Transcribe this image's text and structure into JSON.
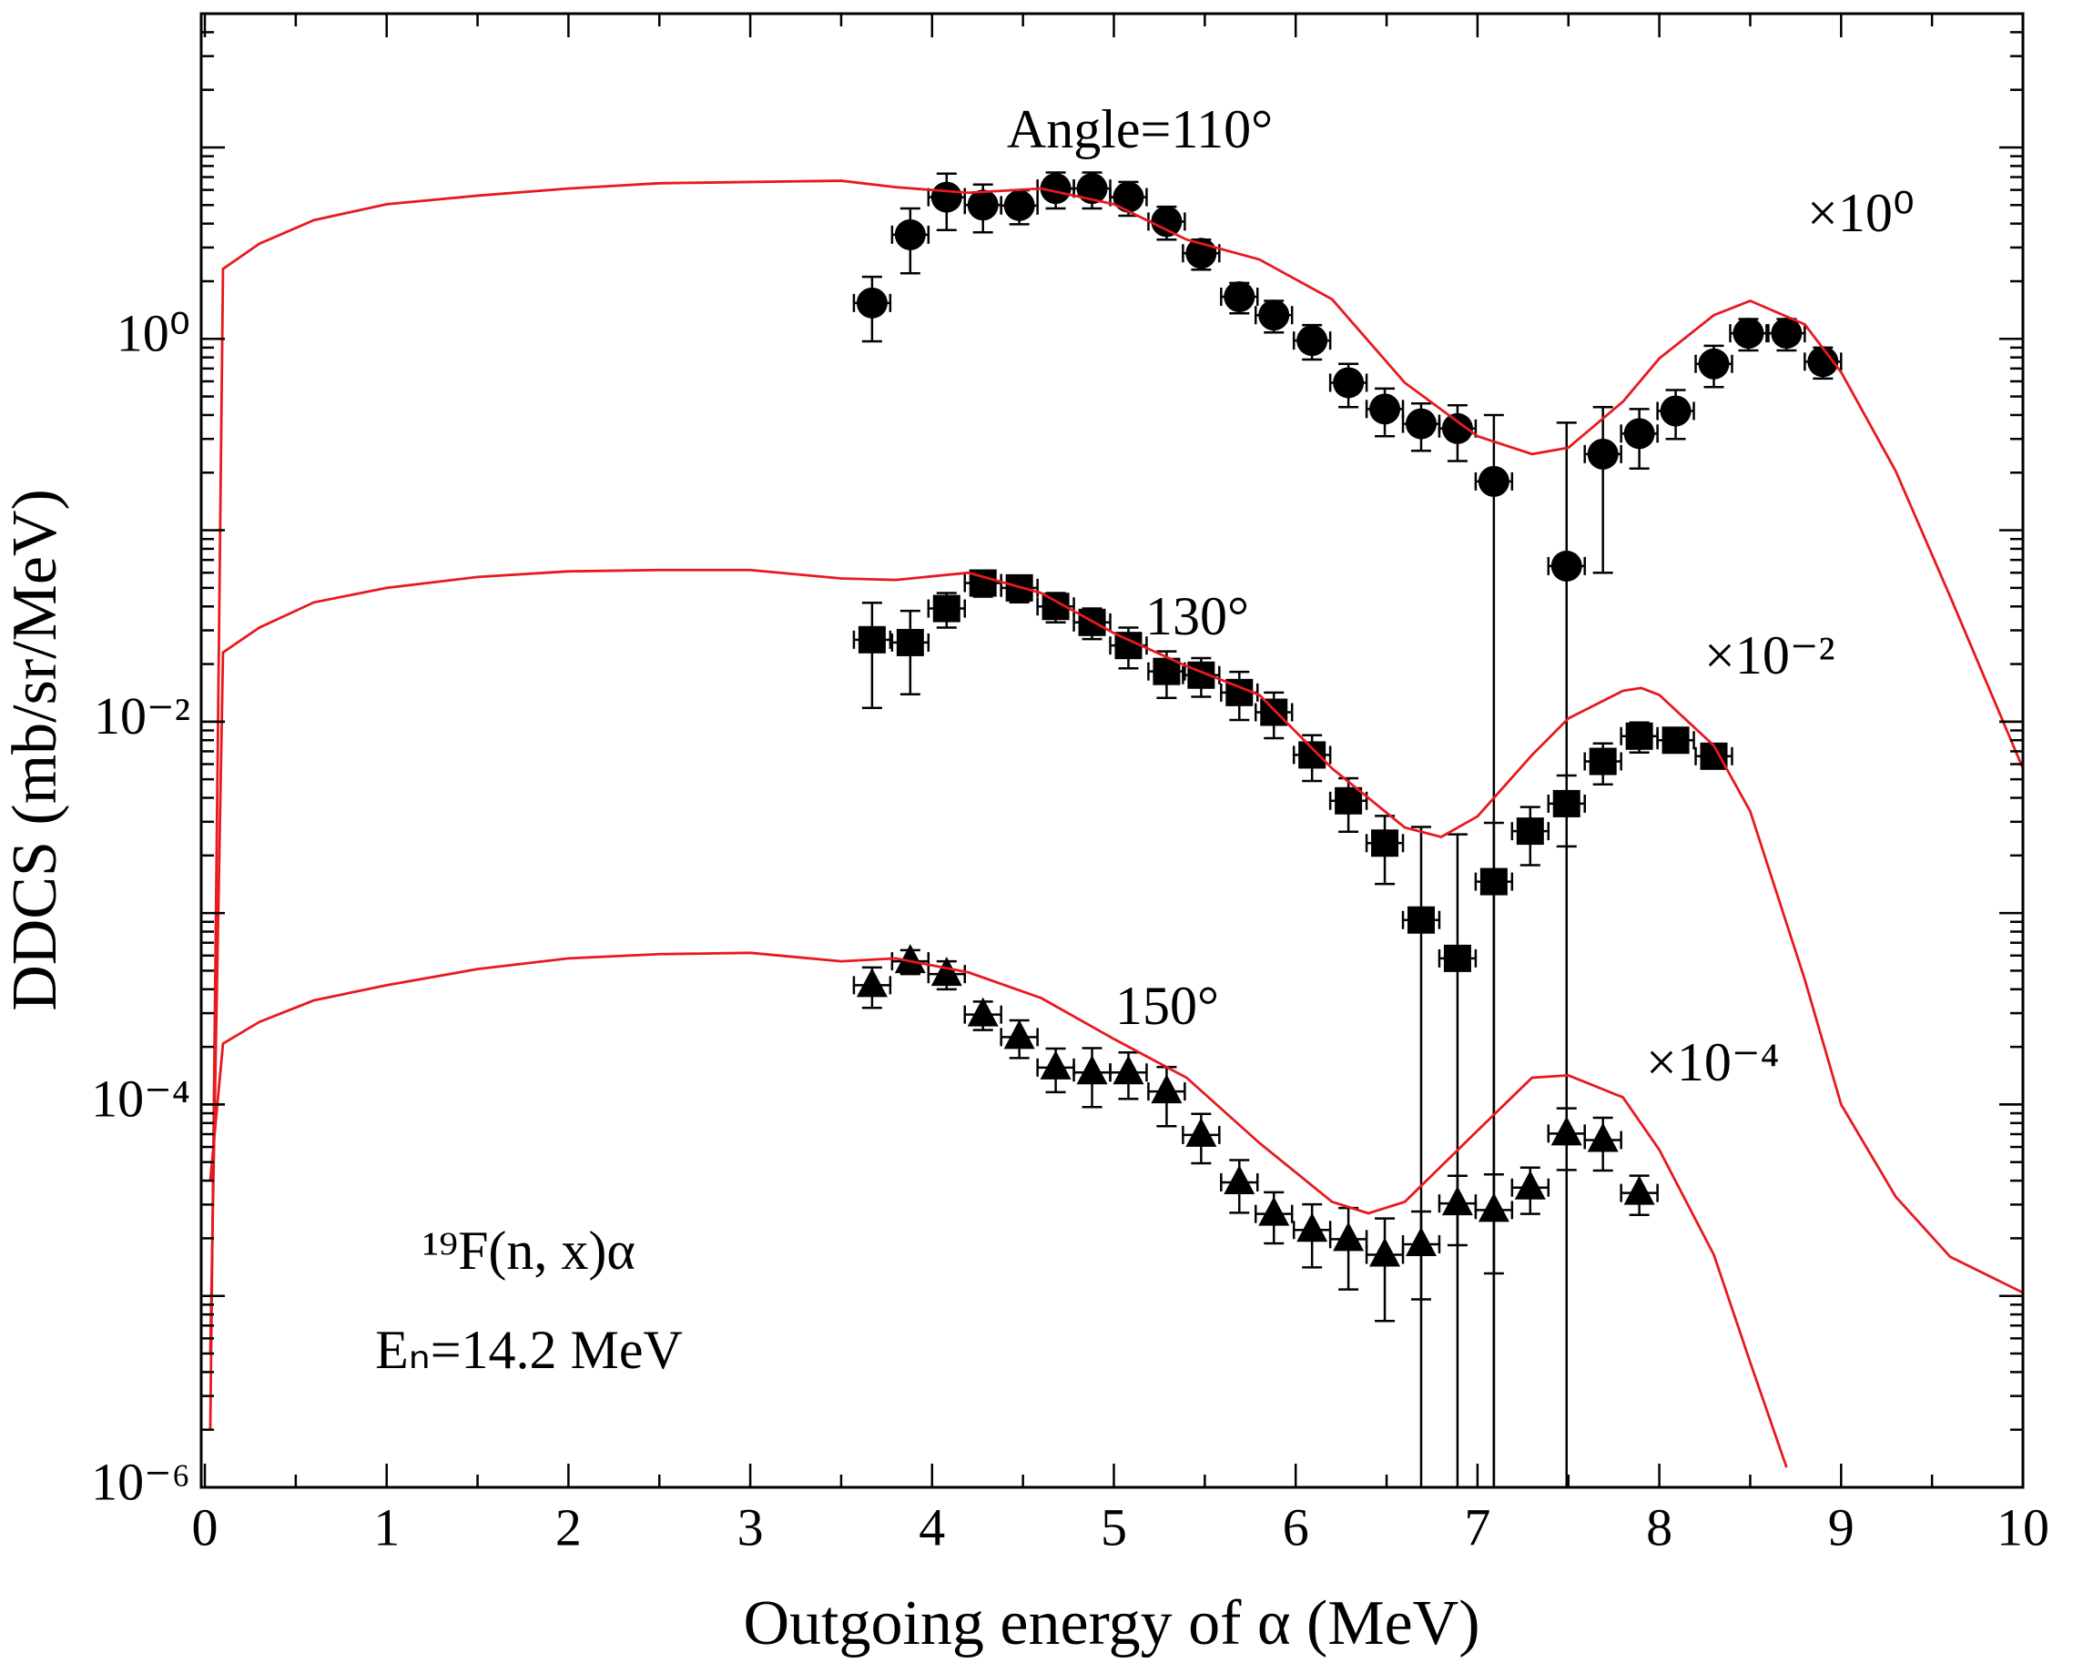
{
  "chart_data": {
    "type": "scatter",
    "log_y": true,
    "xlabel": "Outgoing energy of α (MeV)",
    "ylabel": "DDCS (mb/sr/MeV)",
    "xlim": [
      -0.02,
      10
    ],
    "ylim": [
      1e-06,
      50
    ],
    "xticks": [
      0,
      1,
      2,
      3,
      4,
      5,
      6,
      7,
      8,
      9,
      10
    ],
    "yticks": [
      {
        "value": 1e-06,
        "label": "10⁻⁶"
      },
      {
        "value": 0.0001,
        "label": "10⁻⁴"
      },
      {
        "value": 0.01,
        "label": "10⁻²"
      },
      {
        "value": 1,
        "label": "10⁰"
      }
    ],
    "annotations": [
      "Angle=110°",
      "130°",
      "150°",
      "×10⁰",
      "×10⁻²",
      "×10⁻⁴",
      "¹⁹F(n, x)α",
      "Eₙ=14.2 MeV"
    ],
    "series": [
      {
        "marker": "circle",
        "color": "#000000",
        "x": [
          3.67,
          3.88,
          4.08,
          4.28,
          4.48,
          4.68,
          4.88,
          5.08,
          5.29,
          5.48,
          5.69,
          5.88,
          6.09,
          6.29,
          6.49,
          6.69,
          6.89,
          7.09,
          7.49,
          7.69,
          7.89,
          8.09,
          8.3,
          8.49,
          8.7,
          8.9
        ],
        "values": [
          1.54,
          3.5,
          5.5,
          5.0,
          4.97,
          6.1,
          6.1,
          5.5,
          4.1,
          2.8,
          1.66,
          1.33,
          0.98,
          0.59,
          0.43,
          0.36,
          0.34,
          0.18,
          0.065,
          0.25,
          0.32,
          0.42,
          0.74,
          1.07,
          1.07,
          0.76
        ],
        "yerr": [
          0.57,
          1.3,
          1.8,
          1.4,
          1.0,
          1.3,
          1.3,
          1.1,
          0.8,
          0.5,
          0.3,
          0.25,
          0.2,
          0.15,
          0.12,
          0.1,
          0.11,
          0.22,
          0.3,
          0.19,
          0.11,
          0.12,
          0.18,
          0.2,
          0.2,
          0.14
        ],
        "xerr": [
          0.1,
          0.1,
          0.1,
          0.1,
          0.1,
          0.1,
          0.1,
          0.1,
          0.1,
          0.1,
          0.1,
          0.1,
          0.1,
          0.1,
          0.1,
          0.1,
          0.1,
          0.1,
          0.1,
          0.1,
          0.1,
          0.1,
          0.1,
          0.1,
          0.1,
          0.1
        ]
      },
      {
        "marker": "square",
        "color": "#000000",
        "x": [
          3.67,
          3.88,
          4.08,
          4.28,
          4.48,
          4.68,
          4.88,
          5.08,
          5.29,
          5.48,
          5.69,
          5.88,
          6.09,
          6.29,
          6.49,
          6.69,
          6.89,
          7.09,
          7.29,
          7.49,
          7.69,
          7.89,
          8.09,
          8.3
        ],
        "values": [
          0.0268,
          0.0259,
          0.039,
          0.053,
          0.05,
          0.04,
          0.033,
          0.025,
          0.0183,
          0.0175,
          0.0142,
          0.0112,
          0.0067,
          0.00386,
          0.00232,
          0.00092,
          0.00058,
          0.00146,
          0.00268,
          0.00373,
          0.0062,
          0.0084,
          0.008,
          0.0066
        ],
        "yerr": [
          0.015,
          0.012,
          0.008,
          0.008,
          0.008,
          0.007,
          0.006,
          0.006,
          0.005,
          0.004,
          0.004,
          0.003,
          0.0018,
          0.0012,
          0.0009,
          0.0019,
          0.002,
          0.0015,
          0.0009,
          0.0015,
          0.0015,
          0.0015,
          0.001,
          0.0005
        ],
        "xerr": [
          0.1,
          0.1,
          0.1,
          0.1,
          0.1,
          0.1,
          0.1,
          0.1,
          0.1,
          0.1,
          0.1,
          0.1,
          0.1,
          0.1,
          0.1,
          0.1,
          0.1,
          0.1,
          0.1,
          0.1,
          0.1,
          0.1,
          0.1,
          0.1
        ]
      },
      {
        "marker": "triangle",
        "color": "#000000",
        "x": [
          3.67,
          3.88,
          4.08,
          4.28,
          4.48,
          4.68,
          4.88,
          5.08,
          5.29,
          5.48,
          5.69,
          5.88,
          6.09,
          6.29,
          6.49,
          6.69,
          6.89,
          7.09,
          7.29,
          7.49,
          7.69,
          7.89
        ],
        "values": [
          0.00042,
          0.00056,
          0.00048,
          0.000295,
          0.000225,
          0.000156,
          0.000147,
          0.000147,
          0.000117,
          6.93e-05,
          3.92e-05,
          2.68e-05,
          2.21e-05,
          1.98e-05,
          1.64e-05,
          1.86e-05,
          3.04e-05,
          2.81e-05,
          3.68e-05,
          7.05e-05,
          6.52e-05,
          3.45e-05
        ],
        "yerr": [
          0.0001,
          8e-05,
          8e-05,
          5e-05,
          5e-05,
          4e-05,
          5e-05,
          4e-05,
          4e-05,
          2e-05,
          1.2e-05,
          8e-06,
          8e-06,
          9e-06,
          9e-06,
          9e-06,
          1.2e-05,
          1.5e-05,
          1e-05,
          2.5e-05,
          2e-05,
          8e-06
        ],
        "xerr": [
          0.1,
          0.1,
          0.1,
          0.1,
          0.1,
          0.1,
          0.1,
          0.1,
          0.1,
          0.1,
          0.1,
          0.1,
          0.1,
          0.1,
          0.1,
          0.1,
          0.1,
          0.1,
          0.1,
          0.1,
          0.1,
          0.1
        ]
      },
      {
        "marker": "line",
        "color": "#e8191e",
        "x": [
          0.03,
          0.1,
          0.3,
          0.6,
          1,
          1.5,
          2,
          2.5,
          3,
          3.5,
          3.8,
          4.2,
          4.6,
          5.0,
          5.4,
          5.8,
          6.2,
          6.6,
          7.0,
          7.3,
          7.5,
          7.8,
          8.0,
          8.3,
          8.5,
          8.8,
          9.0,
          9.3,
          9.6,
          10
        ],
        "values": [
          2e-06,
          2.32,
          3.14,
          4.17,
          5.05,
          5.6,
          6.1,
          6.5,
          6.6,
          6.7,
          6.2,
          5.8,
          6.1,
          5.05,
          3.3,
          2.6,
          1.61,
          0.59,
          0.31,
          0.25,
          0.27,
          0.47,
          0.79,
          1.33,
          1.58,
          1.19,
          0.67,
          0.204,
          0.045,
          0.0057
        ]
      },
      {
        "marker": "line",
        "color": "#e8191e",
        "x": [
          0.03,
          0.1,
          0.3,
          0.6,
          1,
          1.5,
          2,
          2.5,
          3,
          3.5,
          3.8,
          4.2,
          4.6,
          5.0,
          5.4,
          5.8,
          6.2,
          6.6,
          6.8,
          7.0,
          7.3,
          7.5,
          7.8,
          7.9,
          8.0,
          8.3,
          8.5,
          8.8,
          9.0,
          9.3,
          9.6,
          10
        ],
        "values": [
          5e-06,
          0.023,
          0.031,
          0.042,
          0.05,
          0.057,
          0.061,
          0.062,
          0.062,
          0.056,
          0.055,
          0.06,
          0.047,
          0.029,
          0.0195,
          0.0138,
          0.0057,
          0.0028,
          0.0025,
          0.0032,
          0.0067,
          0.0104,
          0.0145,
          0.015,
          0.0138,
          0.0075,
          0.0034,
          0.00045,
          0.0001,
          3.3e-05,
          1.6e-05,
          1.04e-05
        ]
      },
      {
        "marker": "line",
        "color": "#e8191e",
        "x": [
          0.03,
          0.1,
          0.3,
          0.6,
          1,
          1.5,
          2,
          2.5,
          3,
          3.5,
          3.8,
          4.2,
          4.6,
          5.0,
          5.4,
          5.8,
          6.2,
          6.4,
          6.6,
          7.0,
          7.3,
          7.5,
          7.8,
          8.0,
          8.3,
          8.5,
          8.7
        ],
        "values": [
          4e-05,
          0.000208,
          0.00027,
          0.00035,
          0.00042,
          0.00051,
          0.00058,
          0.00061,
          0.00062,
          0.00056,
          0.00058,
          0.00049,
          0.00036,
          0.00022,
          0.000138,
          6.3e-05,
          3.1e-05,
          2.7e-05,
          3.1e-05,
          7.3e-05,
          0.000138,
          0.000142,
          0.000109,
          5.8e-05,
          1.64e-05,
          4.5e-06,
          1.27e-06
        ]
      }
    ]
  }
}
